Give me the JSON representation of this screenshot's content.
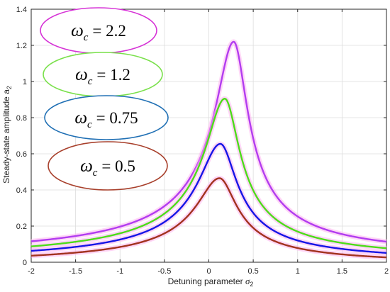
{
  "chart_data": {
    "type": "line",
    "title": "",
    "xlabel": "Detuning parameter",
    "xlabel_symbol": "σ",
    "xlabel_subscript": "2",
    "ylabel": "Steady-state amplitude a",
    "ylabel_subscript": "2",
    "xlim": [
      -2,
      2
    ],
    "ylim": [
      0,
      1.4
    ],
    "x_ticks": [
      "-2",
      "-1.5",
      "-1",
      "-0.5",
      "0",
      "0.5",
      "1",
      "1.5",
      "2"
    ],
    "y_ticks": [
      "0",
      "0.2",
      "0.4",
      "0.6",
      "0.8",
      "1",
      "1.2",
      "1.4"
    ],
    "grid": true,
    "legend_placement": "left",
    "series": [
      {
        "name": "ω_c = 2.2",
        "legend_symbol": "ω",
        "legend_subscript": "c",
        "legend_value": "= 2.2",
        "color": "#b23cf0",
        "oval_color": "#d633d6",
        "peak_x": 0.28,
        "peak_y": 1.21,
        "width": 0.17,
        "shift": 0.01
      },
      {
        "name": "ω_c = 1.2",
        "legend_symbol": "ω",
        "legend_subscript": "c",
        "legend_value": "= 1.2",
        "color": "#4ddc1a",
        "oval_color": "#79e04a",
        "peak_x": 0.18,
        "peak_y": 0.905,
        "width": 0.18,
        "shift": 0.0
      },
      {
        "name": "ω_c = 0.75",
        "legend_symbol": "ω",
        "legend_subscript": "c",
        "legend_value": "= 0.75",
        "color": "#1616e6",
        "oval_color": "#1f6fb4",
        "peak_x": 0.13,
        "peak_y": 0.665,
        "width": 0.2,
        "shift": -0.01
      },
      {
        "name": "ω_c = 0.5",
        "legend_symbol": "ω",
        "legend_subscript": "c",
        "legend_value": "= 0.5",
        "color": "#a2331f",
        "oval_color": "#a8402c",
        "peak_x": 0.12,
        "peak_y": 0.485,
        "width": 0.21,
        "shift": -0.02
      }
    ]
  }
}
